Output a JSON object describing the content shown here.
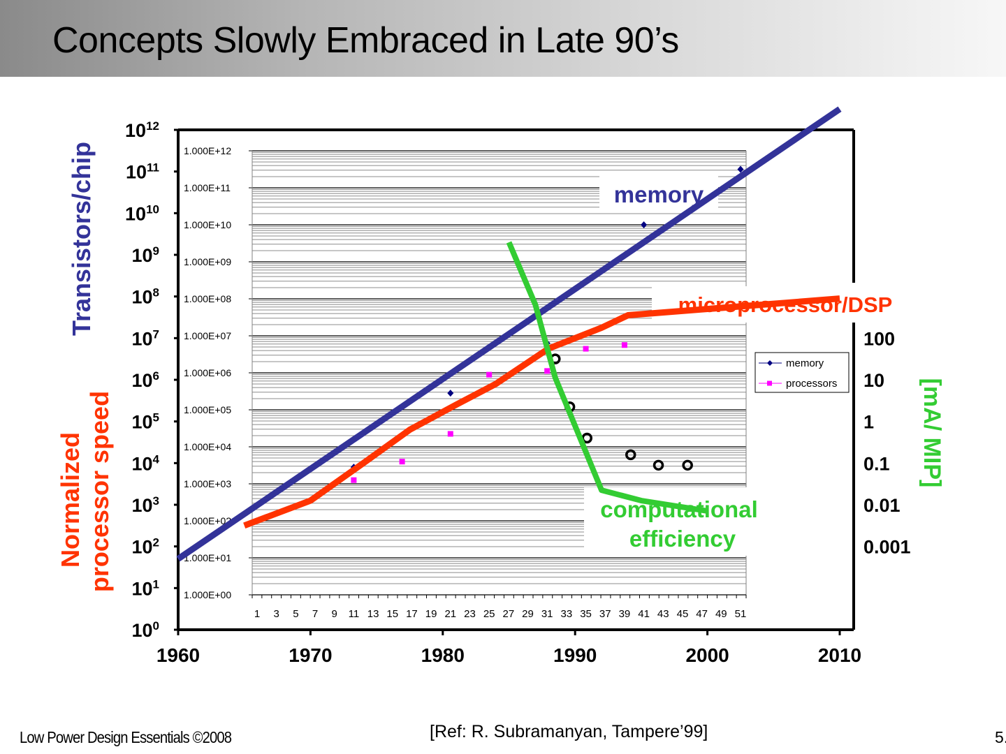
{
  "slide": {
    "title": "Concepts Slowly Embraced in Late 90’s",
    "footer_left": "Low Power Design Essentials ©2008",
    "footer_ref": "[Ref: R. Subramanyan, Tampere’99]",
    "page_number": "5."
  },
  "colors": {
    "memory": "#333399",
    "processor": "#ff3300",
    "efficiency": "#33cc33",
    "memory_marker": "#000080",
    "processor_marker": "#ff00ff",
    "axis": "#000000"
  },
  "chart_data": {
    "type": "line",
    "outer_axes": {
      "x_ticks": [
        "1960",
        "1970",
        "1980",
        "1990",
        "2000",
        "2010"
      ],
      "x_range": [
        1960,
        2010
      ],
      "left_ticks": [
        {
          "base": "10",
          "exp": "0"
        },
        {
          "base": "10",
          "exp": "1"
        },
        {
          "base": "10",
          "exp": "2"
        },
        {
          "base": "10",
          "exp": "3"
        },
        {
          "base": "10",
          "exp": "4"
        },
        {
          "base": "10",
          "exp": "5"
        },
        {
          "base": "10",
          "exp": "6"
        },
        {
          "base": "10",
          "exp": "7"
        },
        {
          "base": "10",
          "exp": "8"
        },
        {
          "base": "10",
          "exp": "9"
        },
        {
          "base": "10",
          "exp": "10"
        },
        {
          "base": "10",
          "exp": "11"
        },
        {
          "base": "10",
          "exp": "12"
        }
      ],
      "left_scale": "log",
      "left_range_exp": [
        0,
        12
      ],
      "left_label_top": "Transistors/chip",
      "left_label_bottom_line1": "Normalized",
      "left_label_bottom_line2": "processor speed",
      "right_ticks": [
        "100",
        "10",
        "1",
        "0.1",
        "0.01",
        "0.001"
      ],
      "right_label": "[mA/ MIP]"
    },
    "inner_axes": {
      "y_ticks": [
        "1.000E+12",
        "1.000E+11",
        "1.000E+10",
        "1.000E+09",
        "1.000E+08",
        "1.000E+07",
        "1.000E+06",
        "1.000E+05",
        "1.000E+04",
        "1.000E+03",
        "1.000E+02",
        "1.000E+01",
        "1.000E+00"
      ],
      "y_range_exp": [
        0,
        12
      ],
      "x_ticks": [
        "1",
        "3",
        "5",
        "7",
        "9",
        "11",
        "13",
        "15",
        "17",
        "19",
        "21",
        "23",
        "25",
        "27",
        "29",
        "31",
        "33",
        "35",
        "37",
        "39",
        "41",
        "43",
        "45",
        "47",
        "49",
        "51"
      ],
      "x_range": [
        1,
        51
      ]
    },
    "legend": {
      "placement": "right",
      "entries": [
        {
          "name": "memory",
          "marker": "diamond"
        },
        {
          "name": "processors",
          "marker": "square"
        }
      ]
    },
    "annotations": {
      "memory": "memory",
      "processor": "microprocessor/DSP",
      "efficiency_line1": "computational",
      "efficiency_line2": "efficiency"
    },
    "series": [
      {
        "name": "memory trend",
        "axis": "left",
        "unit": "log10 transistors/chip",
        "points": [
          [
            1960,
            1.7
          ],
          [
            2010,
            12.5
          ]
        ]
      },
      {
        "name": "microprocessor/DSP trend",
        "axis": "left",
        "unit": "log10 normalized speed",
        "points": [
          [
            1965,
            2.5
          ],
          [
            1970,
            3.1
          ],
          [
            1974,
            4.0
          ],
          [
            1977.5,
            4.8
          ],
          [
            1981,
            5.4
          ],
          [
            1984,
            5.9
          ],
          [
            1988,
            6.75
          ],
          [
            1992,
            7.25
          ],
          [
            1994,
            7.55
          ],
          [
            2000,
            7.7
          ],
          [
            2010,
            7.95
          ]
        ]
      },
      {
        "name": "computational efficiency",
        "axis": "right",
        "unit": "log10 mA/MIP",
        "points": [
          [
            1985,
            4.3
          ],
          [
            1987,
            2.8
          ],
          [
            1988.5,
            1.05
          ],
          [
            1992,
            -1.65
          ],
          [
            1995,
            -1.9
          ],
          [
            2000,
            -2.15
          ]
        ]
      },
      {
        "name": "memory",
        "axis": "inner",
        "unit": "log10 value vs category",
        "markers": [
          [
            11,
            3.45
          ],
          [
            21,
            5.45
          ],
          [
            31,
            6.8
          ],
          [
            41,
            10.0
          ],
          [
            51,
            11.5
          ]
        ]
      },
      {
        "name": "processors",
        "axis": "inner",
        "unit": "log10 value vs category",
        "markers": [
          [
            11,
            3.1
          ],
          [
            16,
            3.6
          ],
          [
            21,
            4.35
          ],
          [
            25,
            5.95
          ],
          [
            31,
            6.05
          ],
          [
            35,
            6.65
          ],
          [
            39,
            6.75
          ]
        ]
      },
      {
        "name": "efficiency points",
        "axis": "right",
        "unit": "log10 mA/MIP",
        "markers": [
          [
            1988.5,
            1.5
          ],
          [
            1989.6,
            0.35
          ],
          [
            1990.9,
            -0.4
          ],
          [
            1994.2,
            -0.8
          ],
          [
            1996.3,
            -1.05
          ],
          [
            1998.5,
            -1.05
          ]
        ]
      }
    ]
  }
}
